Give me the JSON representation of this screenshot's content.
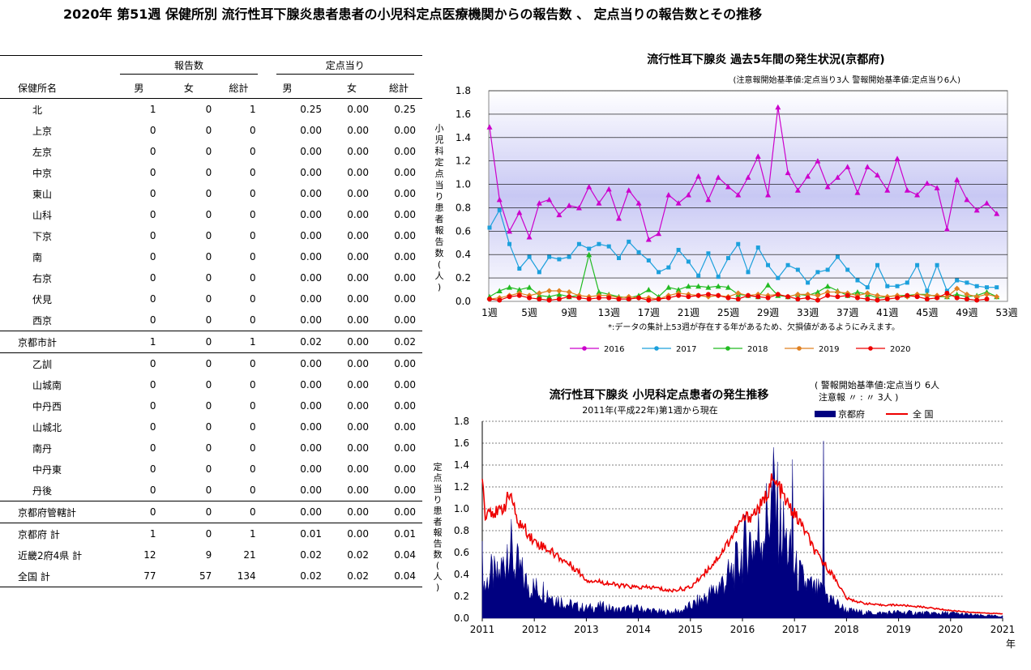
{
  "page_title": "2020年 第51週 保健所別 流行性耳下腺炎患者患者の小児科定点医療機関からの報告数 、 定点当りの報告数とその推移",
  "table": {
    "group_headers": {
      "reports": "報告数",
      "per_sentinel": "定点当り"
    },
    "columns": [
      "保健所名",
      "男",
      "女",
      "総計",
      "男",
      "女",
      "総計"
    ],
    "rows": [
      {
        "name": "北",
        "m": "1",
        "f": "0",
        "t": "1",
        "pm": "0.25",
        "pf": "0.00",
        "pt": "0.25",
        "indent": true
      },
      {
        "name": "上京",
        "m": "0",
        "f": "0",
        "t": "0",
        "pm": "0.00",
        "pf": "0.00",
        "pt": "0.00",
        "indent": true
      },
      {
        "name": "左京",
        "m": "0",
        "f": "0",
        "t": "0",
        "pm": "0.00",
        "pf": "0.00",
        "pt": "0.00",
        "indent": true
      },
      {
        "name": "中京",
        "m": "0",
        "f": "0",
        "t": "0",
        "pm": "0.00",
        "pf": "0.00",
        "pt": "0.00",
        "indent": true
      },
      {
        "name": "東山",
        "m": "0",
        "f": "0",
        "t": "0",
        "pm": "0.00",
        "pf": "0.00",
        "pt": "0.00",
        "indent": true
      },
      {
        "name": "山科",
        "m": "0",
        "f": "0",
        "t": "0",
        "pm": "0.00",
        "pf": "0.00",
        "pt": "0.00",
        "indent": true
      },
      {
        "name": "下京",
        "m": "0",
        "f": "0",
        "t": "0",
        "pm": "0.00",
        "pf": "0.00",
        "pt": "0.00",
        "indent": true
      },
      {
        "name": "南",
        "m": "0",
        "f": "0",
        "t": "0",
        "pm": "0.00",
        "pf": "0.00",
        "pt": "0.00",
        "indent": true
      },
      {
        "name": "右京",
        "m": "0",
        "f": "0",
        "t": "0",
        "pm": "0.00",
        "pf": "0.00",
        "pt": "0.00",
        "indent": true
      },
      {
        "name": "伏見",
        "m": "0",
        "f": "0",
        "t": "0",
        "pm": "0.00",
        "pf": "0.00",
        "pt": "0.00",
        "indent": true
      },
      {
        "name": "西京",
        "m": "0",
        "f": "0",
        "t": "0",
        "pm": "0.00",
        "pf": "0.00",
        "pt": "0.00",
        "indent": true,
        "line": true
      },
      {
        "name": "京都市計",
        "m": "1",
        "f": "0",
        "t": "1",
        "pm": "0.02",
        "pf": "0.00",
        "pt": "0.02",
        "indent": false,
        "line": true
      },
      {
        "name": "乙訓",
        "m": "0",
        "f": "0",
        "t": "0",
        "pm": "0.00",
        "pf": "0.00",
        "pt": "0.00",
        "indent": true
      },
      {
        "name": "山城南",
        "m": "0",
        "f": "0",
        "t": "0",
        "pm": "0.00",
        "pf": "0.00",
        "pt": "0.00",
        "indent": true
      },
      {
        "name": "中丹西",
        "m": "0",
        "f": "0",
        "t": "0",
        "pm": "0.00",
        "pf": "0.00",
        "pt": "0.00",
        "indent": true
      },
      {
        "name": "山城北",
        "m": "0",
        "f": "0",
        "t": "0",
        "pm": "0.00",
        "pf": "0.00",
        "pt": "0.00",
        "indent": true
      },
      {
        "name": "南丹",
        "m": "0",
        "f": "0",
        "t": "0",
        "pm": "0.00",
        "pf": "0.00",
        "pt": "0.00",
        "indent": true
      },
      {
        "name": "中丹東",
        "m": "0",
        "f": "0",
        "t": "0",
        "pm": "0.00",
        "pf": "0.00",
        "pt": "0.00",
        "indent": true
      },
      {
        "name": "丹後",
        "m": "0",
        "f": "0",
        "t": "0",
        "pm": "0.00",
        "pf": "0.00",
        "pt": "0.00",
        "indent": true,
        "line": true
      },
      {
        "name": "京都府管轄計",
        "m": "0",
        "f": "0",
        "t": "0",
        "pm": "0.00",
        "pf": "0.00",
        "pt": "0.00",
        "indent": false,
        "line": true
      },
      {
        "name": "京都府 計",
        "m": "1",
        "f": "0",
        "t": "1",
        "pm": "0.01",
        "pf": "0.00",
        "pt": "0.01",
        "indent": false
      },
      {
        "name": "近畿2府4県 計",
        "m": "12",
        "f": "9",
        "t": "21",
        "pm": "0.02",
        "pf": "0.02",
        "pt": "0.04",
        "indent": false
      },
      {
        "name": "全国 計",
        "m": "77",
        "f": "57",
        "t": "134",
        "pm": "0.02",
        "pf": "0.02",
        "pt": "0.04",
        "indent": false,
        "line": true
      }
    ]
  },
  "chart_data": [
    {
      "type": "line",
      "title": "流行性耳下腺炎 過去5年間の発生状況(京都府)",
      "subtitle": "(注意報開始基準値:定点当り3人 警報開始基準値:定点当り6人)",
      "ylabel": "小児科定点当り患者報告数(人)",
      "xlabel": "",
      "note": "*:データの集計上53週が存在する年があるため、欠損値があるようにみえます。",
      "ylim": [
        0,
        1.8
      ],
      "yticks": [
        "0.0",
        "0.2",
        "0.4",
        "0.6",
        "0.8",
        "1.0",
        "1.2",
        "1.4",
        "1.6",
        "1.8"
      ],
      "xticks": [
        "1週",
        "5週",
        "9週",
        "13週",
        "17週",
        "21週",
        "25週",
        "29週",
        "33週",
        "37週",
        "41週",
        "45週",
        "49週",
        "53週"
      ],
      "colors": {
        "2016": "#CC00CC",
        "2017": "#1CA0DC",
        "2018": "#22BB22",
        "2019": "#E08020",
        "2020": "#EE0000"
      },
      "series": [
        {
          "name": "2016",
          "values": [
            1.49,
            0.87,
            0.6,
            0.76,
            0.55,
            0.84,
            0.87,
            0.74,
            0.82,
            0.8,
            0.98,
            0.84,
            0.96,
            0.71,
            0.95,
            0.84,
            0.53,
            0.58,
            0.91,
            0.84,
            0.91,
            1.07,
            0.87,
            1.06,
            0.98,
            0.91,
            1.06,
            1.24,
            0.91,
            1.66,
            1.1,
            0.95,
            1.07,
            1.2,
            0.98,
            1.06,
            1.15,
            0.93,
            1.15,
            1.08,
            0.95,
            1.22,
            0.95,
            0.91,
            1.01,
            0.97,
            0.62,
            1.04,
            0.87,
            0.78,
            0.84,
            0.75
          ]
        },
        {
          "name": "2017",
          "values": [
            0.63,
            0.78,
            0.49,
            0.28,
            0.38,
            0.25,
            0.38,
            0.36,
            0.38,
            0.49,
            0.45,
            0.49,
            0.47,
            0.37,
            0.51,
            0.42,
            0.35,
            0.25,
            0.29,
            0.44,
            0.34,
            0.22,
            0.41,
            0.21,
            0.37,
            0.49,
            0.25,
            0.46,
            0.31,
            0.2,
            0.31,
            0.27,
            0.16,
            0.25,
            0.27,
            0.38,
            0.27,
            0.18,
            0.12,
            0.31,
            0.13,
            0.13,
            0.16,
            0.31,
            0.09,
            0.31,
            0.09,
            0.18,
            0.16,
            0.13,
            0.12,
            0.12
          ]
        },
        {
          "name": "2018",
          "values": [
            0.04,
            0.09,
            0.12,
            0.1,
            0.12,
            0.05,
            0.04,
            0.06,
            0.04,
            0.05,
            0.4,
            0.08,
            0.06,
            0.04,
            0.03,
            0.05,
            0.1,
            0.04,
            0.12,
            0.1,
            0.13,
            0.13,
            0.12,
            0.13,
            0.12,
            0.06,
            0.05,
            0.04,
            0.14,
            0.05,
            0.04,
            0.06,
            0.05,
            0.08,
            0.13,
            0.09,
            0.05,
            0.08,
            0.06,
            0.03,
            0.04,
            0.05,
            0.05,
            0.06,
            0.06,
            0.04,
            0.04,
            0.06,
            0.04,
            0.05,
            0.08,
            0.04
          ]
        },
        {
          "name": "2019",
          "values": [
            0.02,
            0.03,
            0.05,
            0.07,
            0.05,
            0.07,
            0.09,
            0.09,
            0.08,
            0.05,
            0.04,
            0.05,
            0.05,
            0.03,
            0.04,
            0.03,
            0.03,
            0.02,
            0.05,
            0.07,
            0.06,
            0.05,
            0.04,
            0.05,
            0.04,
            0.07,
            0.05,
            0.06,
            0.05,
            0.06,
            0.04,
            0.06,
            0.06,
            0.05,
            0.08,
            0.08,
            0.07,
            0.05,
            0.07,
            0.05,
            0.04,
            0.05,
            0.04,
            0.06,
            0.05,
            0.05,
            0.04,
            0.11,
            0.06,
            0.04,
            0.06,
            0.04
          ]
        },
        {
          "name": "2020",
          "values": [
            0.02,
            0.01,
            0.04,
            0.05,
            0.03,
            0.02,
            0.01,
            0.02,
            0.04,
            0.03,
            0.02,
            0.03,
            0.03,
            0.02,
            0.02,
            0.03,
            0.01,
            0.02,
            0.03,
            0.05,
            0.04,
            0.05,
            0.06,
            0.05,
            0.03,
            0.02,
            0.05,
            0.04,
            0.03,
            0.06,
            0.04,
            0.02,
            0.03,
            0.01,
            0.05,
            0.04,
            0.05,
            0.03,
            0.02,
            0.01,
            0.02,
            0.03,
            0.05,
            0.04,
            0.02,
            0.03,
            0.07,
            0.03,
            0.02,
            0.01,
            0.02
          ]
        }
      ]
    },
    {
      "type": "area",
      "title": "流行性耳下腺炎 小児科定点患者の発生推移",
      "subtitle": "2011年(平成22年)第1週から現在",
      "ylabel": "定点当り患者報告数(人)",
      "xlabel": "年",
      "ylim": [
        0,
        1.8
      ],
      "yticks": [
        "0.0",
        "0.2",
        "0.4",
        "0.6",
        "0.8",
        "1.0",
        "1.2",
        "1.4",
        "1.6",
        "1.8"
      ],
      "xticks": [
        "2011",
        "2012",
        "2013",
        "2014",
        "2015",
        "2016",
        "2017",
        "2018",
        "2019",
        "2020",
        "2021"
      ],
      "threshold_note_line1": "( 警報開始基準値:定点当り 6人",
      "threshold_note_line2": "注意報  〃  : 〃  3人 )",
      "colors": {
        "京都府": "#000080",
        "全 国": "#EE0000"
      },
      "series": [
        {
          "name": "京都府",
          "anchors": [
            [
              2011.0,
              0.55
            ],
            [
              2011.05,
              0.3
            ],
            [
              2011.15,
              0.45
            ],
            [
              2011.3,
              0.4
            ],
            [
              2011.45,
              0.6
            ],
            [
              2011.5,
              0.85
            ],
            [
              2011.6,
              0.55
            ],
            [
              2011.7,
              0.5
            ],
            [
              2011.85,
              0.35
            ],
            [
              2012.0,
              0.3
            ],
            [
              2012.2,
              0.28
            ],
            [
              2012.4,
              0.2
            ],
            [
              2012.6,
              0.15
            ],
            [
              2012.8,
              0.12
            ],
            [
              2013.0,
              0.1
            ],
            [
              2013.3,
              0.12
            ],
            [
              2013.6,
              0.08
            ],
            [
              2013.9,
              0.1
            ],
            [
              2014.2,
              0.08
            ],
            [
              2014.5,
              0.06
            ],
            [
              2014.8,
              0.07
            ],
            [
              2015.0,
              0.12
            ],
            [
              2015.2,
              0.18
            ],
            [
              2015.4,
              0.25
            ],
            [
              2015.6,
              0.35
            ],
            [
              2015.8,
              0.45
            ],
            [
              2016.0,
              0.65
            ],
            [
              2016.1,
              0.8
            ],
            [
              2016.2,
              0.75
            ],
            [
              2016.35,
              0.85
            ],
            [
              2016.5,
              1.05
            ],
            [
              2016.6,
              1.25
            ],
            [
              2016.7,
              1.0
            ],
            [
              2016.85,
              0.75
            ],
            [
              2017.0,
              0.5
            ],
            [
              2017.2,
              0.35
            ],
            [
              2017.4,
              0.28
            ],
            [
              2017.6,
              0.25
            ],
            [
              2017.8,
              0.15
            ],
            [
              2018.0,
              0.08
            ],
            [
              2018.3,
              0.06
            ],
            [
              2018.6,
              0.05
            ],
            [
              2019.0,
              0.06
            ],
            [
              2019.5,
              0.05
            ],
            [
              2020.0,
              0.05
            ],
            [
              2020.5,
              0.03
            ],
            [
              2021.0,
              0.02
            ]
          ]
        },
        {
          "name": "全 国",
          "anchors": [
            [
              2011.0,
              1.35
            ],
            [
              2011.05,
              0.95
            ],
            [
              2011.15,
              1.0
            ],
            [
              2011.3,
              0.95
            ],
            [
              2011.45,
              1.05
            ],
            [
              2011.55,
              1.15
            ],
            [
              2011.65,
              0.9
            ],
            [
              2011.75,
              0.85
            ],
            [
              2011.85,
              0.8
            ],
            [
              2012.0,
              0.7
            ],
            [
              2012.2,
              0.65
            ],
            [
              2012.5,
              0.55
            ],
            [
              2012.8,
              0.45
            ],
            [
              2013.0,
              0.35
            ],
            [
              2013.3,
              0.33
            ],
            [
              2013.6,
              0.3
            ],
            [
              2014.0,
              0.28
            ],
            [
              2014.3,
              0.28
            ],
            [
              2014.6,
              0.25
            ],
            [
              2015.0,
              0.28
            ],
            [
              2015.2,
              0.38
            ],
            [
              2015.4,
              0.48
            ],
            [
              2015.6,
              0.6
            ],
            [
              2015.8,
              0.75
            ],
            [
              2016.0,
              0.9
            ],
            [
              2016.2,
              0.95
            ],
            [
              2016.4,
              1.05
            ],
            [
              2016.55,
              1.25
            ],
            [
              2016.7,
              1.2
            ],
            [
              2016.85,
              1.05
            ],
            [
              2017.0,
              0.95
            ],
            [
              2017.2,
              0.8
            ],
            [
              2017.4,
              0.6
            ],
            [
              2017.6,
              0.48
            ],
            [
              2017.8,
              0.35
            ],
            [
              2018.0,
              0.18
            ],
            [
              2018.3,
              0.14
            ],
            [
              2018.6,
              0.12
            ],
            [
              2019.0,
              0.12
            ],
            [
              2019.5,
              0.1
            ],
            [
              2020.0,
              0.07
            ],
            [
              2020.5,
              0.05
            ],
            [
              2021.0,
              0.04
            ]
          ]
        }
      ]
    }
  ]
}
